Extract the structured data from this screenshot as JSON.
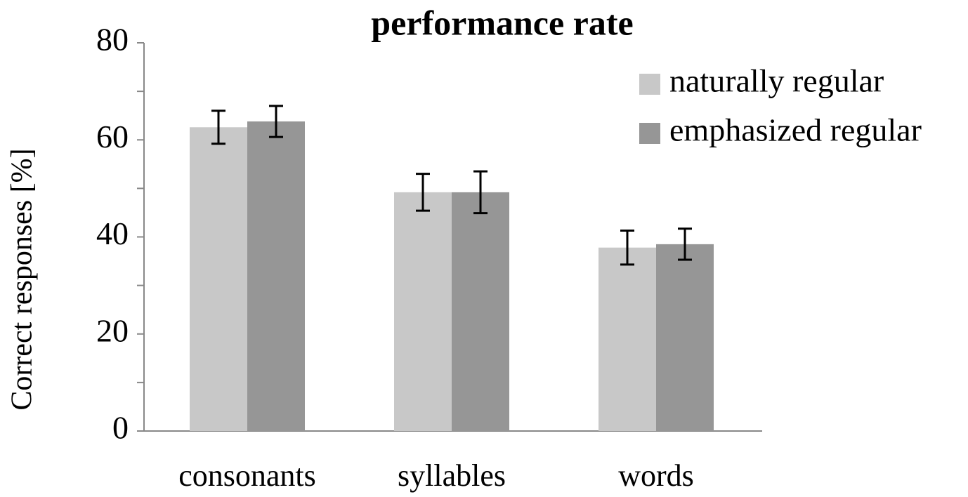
{
  "chart_data": {
    "type": "bar",
    "title": "performance rate",
    "ylabel": "Correct responses [%]",
    "categories": [
      "consonants",
      "syllables",
      "words"
    ],
    "series": [
      {
        "name": "naturally regular",
        "color": "#c8c8c8",
        "values": [
          62.6,
          49.2,
          37.8
        ],
        "errors": [
          3.4,
          3.8,
          3.5
        ]
      },
      {
        "name": "emphasized regular",
        "color": "#969696",
        "values": [
          63.8,
          49.2,
          38.5
        ],
        "errors": [
          3.2,
          4.3,
          3.2
        ]
      }
    ],
    "ylim": [
      0,
      80
    ],
    "yticks": [
      0,
      20,
      40,
      60,
      80
    ],
    "minor_yticks": [
      10,
      30,
      50,
      70
    ],
    "legend": "upper right"
  }
}
